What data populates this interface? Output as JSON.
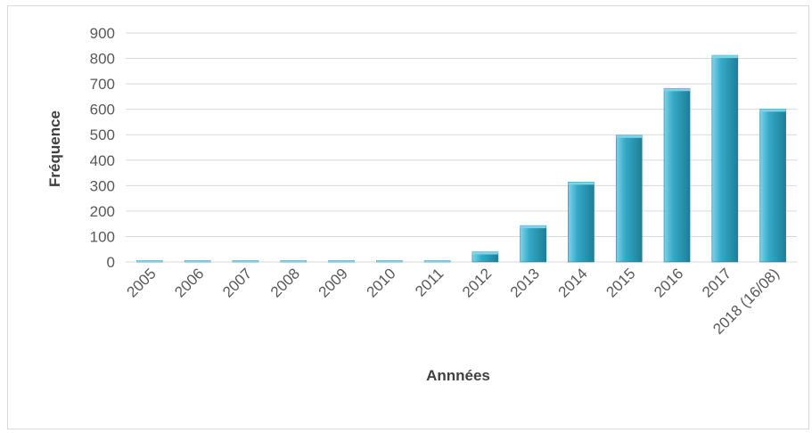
{
  "chart_data": {
    "type": "bar",
    "categories": [
      "2005",
      "2006",
      "2007",
      "2008",
      "2009",
      "2010",
      "2011",
      "2012",
      "2013",
      "2014",
      "2015",
      "2016",
      "2017",
      "2018 (16/08)"
    ],
    "values": [
      0,
      0,
      4,
      0,
      3,
      3,
      3,
      40,
      143,
      314,
      498,
      682,
      812,
      601
    ],
    "xlabel": "Annnées",
    "ylabel": "Fréquence",
    "ylim": [
      0,
      900
    ],
    "yticks": [
      0,
      100,
      200,
      300,
      400,
      500,
      600,
      700,
      800,
      900
    ],
    "grid": true,
    "legend": "none",
    "bar_color": "#35a9c7",
    "bar_color_light": "#7fd3e8",
    "bar_color_dark": "#1d7f99"
  }
}
